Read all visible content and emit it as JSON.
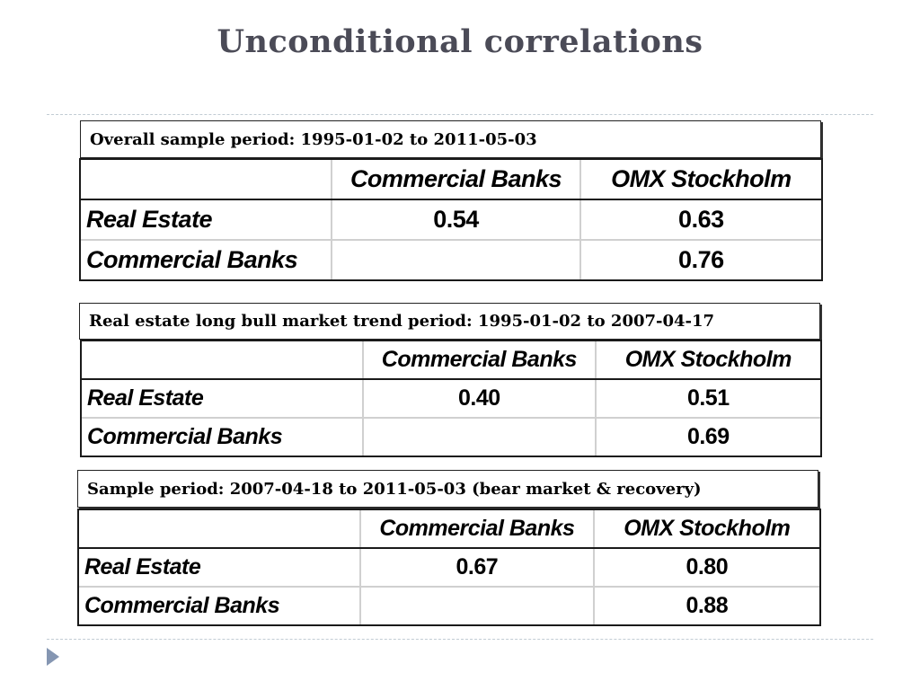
{
  "slide": {
    "title": "Unconditional correlations"
  },
  "tables": [
    {
      "period": "Overall sample period: 1995-01-02 to 2011-05-03",
      "columns": [
        "Commercial Banks",
        "OMX Stockholm"
      ],
      "rows": [
        {
          "label": "Real Estate",
          "values": [
            "0.54",
            "0.63"
          ]
        },
        {
          "label": "Commercial Banks",
          "values": [
            "",
            "0.76"
          ]
        }
      ]
    },
    {
      "period": "Real estate long bull market trend period: 1995-01-02 to 2007-04-17",
      "columns": [
        "Commercial Banks",
        "OMX Stockholm"
      ],
      "rows": [
        {
          "label": "Real Estate",
          "values": [
            "0.40",
            "0.51"
          ]
        },
        {
          "label": "Commercial Banks",
          "values": [
            "",
            "0.69"
          ]
        }
      ]
    },
    {
      "period": "Sample period: 2007-04-18 to 2011-05-03 (bear market & recovery)",
      "columns": [
        "Commercial Banks",
        "OMX Stockholm"
      ],
      "rows": [
        {
          "label": "Real Estate",
          "values": [
            "0.67",
            "0.80"
          ]
        },
        {
          "label": "Commercial Banks",
          "values": [
            "",
            "0.88"
          ]
        }
      ]
    }
  ],
  "colors": {
    "title": "#4b4b57",
    "divider": "#c2ccd4",
    "bullet": "#8596b2"
  },
  "icons": {
    "bullet": "triangle-bullet-icon"
  }
}
